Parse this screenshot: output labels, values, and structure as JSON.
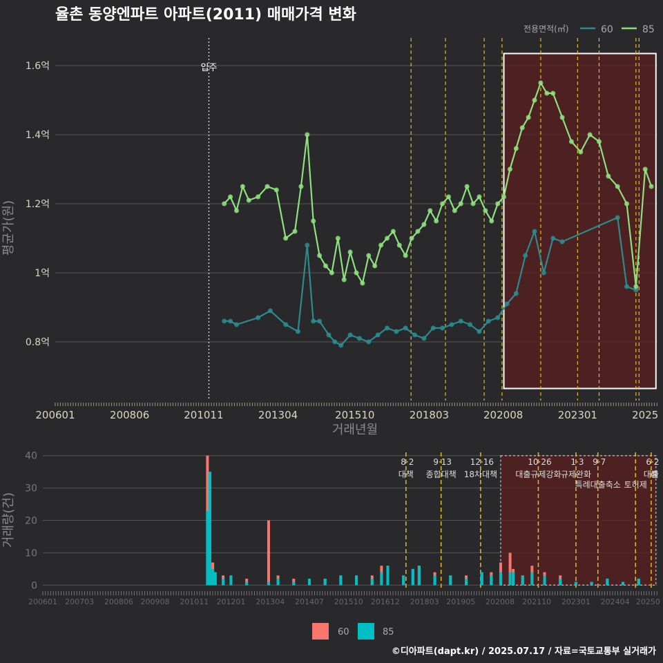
{
  "title": "율촌 동양엔파트 아파트(2011) 매매가격 변화",
  "footer": "©디아파트(dapt.kr) / 2025.07.17 / 자료=국토교통부 실거래가",
  "colors": {
    "background": "#29292b",
    "series_60": "#2a8c8f",
    "series_85": "#8fe07f",
    "bar_60": "#f8766d",
    "bar_85": "#00bfc4",
    "policy_line": "#e0c020",
    "highlight_fill": "#5a1f1f",
    "grid": "#555555"
  },
  "chart_data": [
    {
      "type": "line",
      "title": "율촌 동양엔파트 아파트(2011) 매매가격 변화",
      "xlabel": "거래년월",
      "ylabel": "평균가(원)",
      "legend_title": "전용면적(㎡)",
      "legend_position": "top-right",
      "x_ticks": [
        "200601",
        "200806",
        "201011",
        "201304",
        "201510",
        "201803",
        "202008",
        "202301",
        "2025"
      ],
      "y_ticks": [
        "0.8억",
        "1억",
        "1.2억",
        "1.4억",
        "1.6억"
      ],
      "y_tick_values": [
        0.8,
        1.0,
        1.2,
        1.4,
        1.6
      ],
      "ylim": [
        0.63,
        1.68
      ],
      "xlim": [
        2006.0,
        2025.6
      ],
      "grid": true,
      "annotations": [
        {
          "text": "입주",
          "x": 2011.0
        }
      ],
      "policy_lines_x": [
        2017.58,
        2018.7,
        2019.96,
        2020.54,
        2021.8,
        2023.0,
        2023.7,
        2024.9,
        2025.0
      ],
      "highlight_range_x": [
        2020.6,
        2025.55
      ],
      "highlight_range_y": [
        0.665,
        1.635
      ],
      "series": [
        {
          "name": "60",
          "x": [
            2011.5,
            2011.7,
            2011.9,
            2012.6,
            2013.0,
            2013.5,
            2013.9,
            2014.2,
            2014.4,
            2014.6,
            2014.9,
            2015.1,
            2015.3,
            2015.6,
            2015.9,
            2016.2,
            2016.5,
            2016.8,
            2017.1,
            2017.4,
            2017.7,
            2018.0,
            2018.3,
            2018.6,
            2018.9,
            2019.2,
            2019.5,
            2019.8,
            2020.1,
            2020.4,
            2020.7,
            2021.0,
            2021.3,
            2021.6,
            2021.9,
            2022.2,
            2022.5,
            2024.3,
            2024.6,
            2024.9
          ],
          "values": [
            0.86,
            0.86,
            0.85,
            0.87,
            0.89,
            0.85,
            0.83,
            1.08,
            0.86,
            0.86,
            0.82,
            0.8,
            0.79,
            0.82,
            0.81,
            0.8,
            0.82,
            0.84,
            0.83,
            0.84,
            0.82,
            0.81,
            0.84,
            0.84,
            0.85,
            0.86,
            0.85,
            0.83,
            0.86,
            0.87,
            0.91,
            0.94,
            1.05,
            1.12,
            1.0,
            1.1,
            1.09,
            1.16,
            0.96,
            0.95
          ]
        },
        {
          "name": "85",
          "x": [
            2011.5,
            2011.7,
            2011.9,
            2012.1,
            2012.3,
            2012.6,
            2012.9,
            2013.2,
            2013.5,
            2013.8,
            2014.0,
            2014.2,
            2014.4,
            2014.6,
            2014.8,
            2015.0,
            2015.2,
            2015.4,
            2015.6,
            2015.8,
            2016.0,
            2016.2,
            2016.4,
            2016.6,
            2016.8,
            2017.0,
            2017.2,
            2017.4,
            2017.6,
            2017.8,
            2018.0,
            2018.2,
            2018.4,
            2018.6,
            2018.8,
            2019.0,
            2019.2,
            2019.4,
            2019.6,
            2019.8,
            2020.0,
            2020.2,
            2020.4,
            2020.6,
            2020.8,
            2021.0,
            2021.2,
            2021.4,
            2021.6,
            2021.8,
            2022.0,
            2022.2,
            2022.5,
            2022.8,
            2023.1,
            2023.4,
            2023.7,
            2024.0,
            2024.3,
            2024.6,
            2024.9,
            2025.2,
            2025.4
          ],
          "values": [
            1.2,
            1.22,
            1.18,
            1.25,
            1.21,
            1.22,
            1.25,
            1.24,
            1.1,
            1.12,
            1.25,
            1.4,
            1.15,
            1.05,
            1.02,
            1.0,
            1.1,
            0.98,
            1.06,
            1.0,
            0.97,
            1.05,
            1.02,
            1.08,
            1.1,
            1.12,
            1.08,
            1.05,
            1.1,
            1.12,
            1.14,
            1.18,
            1.15,
            1.2,
            1.22,
            1.18,
            1.2,
            1.25,
            1.2,
            1.22,
            1.18,
            1.15,
            1.2,
            1.22,
            1.3,
            1.36,
            1.42,
            1.45,
            1.5,
            1.55,
            1.52,
            1.52,
            1.45,
            1.38,
            1.35,
            1.4,
            1.38,
            1.28,
            1.25,
            1.2,
            0.96,
            1.3,
            1.25
          ]
        }
      ]
    },
    {
      "type": "bar",
      "ylabel": "거래량(건)",
      "legend_position": "bottom",
      "x_ticks": [
        "200601",
        "200703",
        "200806",
        "200908",
        "201011",
        "201201",
        "201304",
        "201407",
        "201510",
        "201612",
        "201803",
        "201905",
        "202008",
        "202110",
        "202301",
        "202404",
        "20250"
      ],
      "y_ticks": [
        "0",
        "10",
        "20",
        "30",
        "40"
      ],
      "y_tick_values": [
        0,
        10,
        20,
        30,
        40
      ],
      "ylim": [
        -1,
        41
      ],
      "xlim": [
        2006.0,
        2025.6
      ],
      "grid": true,
      "highlight_range_x": [
        2020.6,
        2025.55
      ],
      "policy_annotations": [
        {
          "x": 2017.58,
          "date": "8·2",
          "label": "대책"
        },
        {
          "x": 2018.7,
          "date": "9·13",
          "label": "종합대책"
        },
        {
          "x": 2019.96,
          "date": "12·16",
          "label": "18차대책"
        },
        {
          "x": 2021.8,
          "date": "10·26",
          "label": "대출규제강화"
        },
        {
          "x": 2023.0,
          "date": "1·3",
          "label": "규제완화"
        },
        {
          "x": 2023.7,
          "date": "9·7",
          "label": "특례대출축소"
        },
        {
          "x": 2024.9,
          "date": "",
          "label": "토허제"
        },
        {
          "x": 2025.4,
          "date": "6·2",
          "label": "대출"
        },
        {
          "x": 2025.5,
          "date": "",
          "label": "해"
        }
      ],
      "series": [
        {
          "name": "60",
          "x": [
            2011.25,
            2011.33,
            2011.42,
            2011.5,
            2011.75,
            2012.0,
            2012.5,
            2013.2,
            2013.5,
            2014.0,
            2014.5,
            2015.0,
            2015.5,
            2016.0,
            2016.5,
            2016.8,
            2017.0,
            2017.5,
            2017.8,
            2018.0,
            2018.5,
            2019.0,
            2019.5,
            2020.0,
            2020.3,
            2020.6,
            2020.9,
            2021.0,
            2021.3,
            2021.6,
            2022.0,
            2022.5,
            2023.0,
            2023.5,
            2024.0,
            2024.5,
            2025.0
          ],
          "values": [
            40,
            35,
            7,
            3,
            3,
            2,
            2,
            20,
            3,
            2,
            2,
            2,
            3,
            3,
            3,
            6,
            5,
            3,
            4,
            5,
            4,
            3,
            3,
            4,
            4,
            7,
            10,
            5,
            3,
            6,
            4,
            3,
            1,
            1,
            1,
            1,
            1
          ]
        },
        {
          "name": "85",
          "x": [
            2011.25,
            2011.33,
            2011.42,
            2011.5,
            2011.75,
            2012.0,
            2012.5,
            2013.2,
            2013.5,
            2014.0,
            2014.5,
            2015.0,
            2015.5,
            2016.0,
            2016.5,
            2016.8,
            2017.0,
            2017.5,
            2017.8,
            2018.0,
            2018.5,
            2019.0,
            2019.5,
            2020.0,
            2020.3,
            2020.6,
            2020.9,
            2021.0,
            2021.3,
            2021.6,
            2022.0,
            2022.5,
            2023.0,
            2023.5,
            2024.0,
            2024.5,
            2025.0
          ],
          "values": [
            23,
            35,
            5,
            4,
            2,
            3,
            1,
            1,
            2,
            1,
            2,
            2,
            3,
            3,
            2,
            4,
            6,
            3,
            5,
            6,
            3,
            3,
            2,
            4,
            3,
            4,
            4,
            4,
            3,
            4,
            3,
            2,
            1,
            1,
            2,
            1,
            2
          ]
        }
      ]
    }
  ]
}
